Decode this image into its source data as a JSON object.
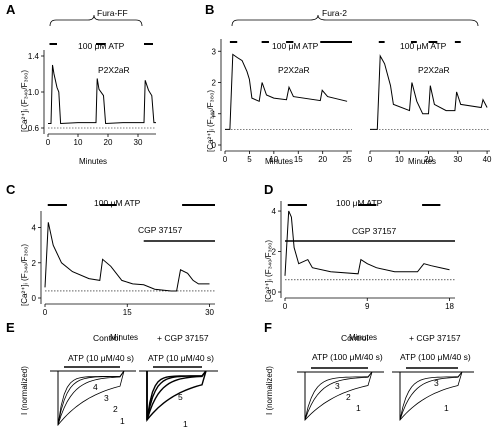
{
  "chart_data": [
    {
      "panel": "A",
      "type": "line",
      "bracket_label": "Fura-FF",
      "xlabel": "Minutes",
      "ylabel": "[Ca²⁺]ᵢ (F₃₄₀/F₃₈₀)",
      "x_ticks": [
        "0",
        "10",
        "20",
        "30"
      ],
      "y_ticks": [
        "0.6",
        "1.0",
        "1.4"
      ],
      "xlim": [
        0,
        36
      ],
      "ylim": [
        0.6,
        1.4
      ],
      "annotations": [
        "100 μM ATP",
        "P2X2aR"
      ],
      "stim_bars": [
        [
          0.5,
          3
        ],
        [
          16,
          19
        ],
        [
          32,
          35
        ]
      ],
      "baseline": 0.6,
      "trace": [
        [
          0,
          0.65
        ],
        [
          1,
          0.65
        ],
        [
          1.5,
          1.3
        ],
        [
          2,
          1.2
        ],
        [
          3,
          1.05
        ],
        [
          3.6,
          1.0
        ],
        [
          4.2,
          0.65
        ],
        [
          10,
          0.66
        ],
        [
          16,
          0.66
        ],
        [
          16.4,
          1.15
        ],
        [
          17,
          1.03
        ],
        [
          18.5,
          0.96
        ],
        [
          19.2,
          0.65
        ],
        [
          25,
          0.66
        ],
        [
          32,
          0.66
        ],
        [
          32.4,
          1.13
        ],
        [
          33.5,
          1.02
        ],
        [
          34.6,
          0.96
        ],
        [
          35.3,
          0.66
        ],
        [
          36,
          0.66
        ]
      ]
    },
    {
      "panel": "B",
      "type": "line",
      "bracket_label": "Fura-2",
      "xlabel": "Minutes",
      "ylabel": "[Ca²⁺]ᵢ (F₃₄₀/F₃₈₀)",
      "x_ticks": [
        "0",
        "5",
        "10",
        "15",
        "20",
        "25"
      ],
      "y_ticks": [
        "0",
        "1",
        "2",
        "3"
      ],
      "xlim": [
        0,
        26
      ],
      "ylim": [
        0,
        3.2
      ],
      "annotations": [
        "100 μM ATP",
        "P2X2aR"
      ],
      "stim_bars": [
        [
          1,
          2.5
        ],
        [
          7.5,
          9
        ],
        [
          12.5,
          14
        ],
        [
          19.5,
          26
        ]
      ],
      "baseline": 0.5,
      "trace": [
        [
          0,
          0.5
        ],
        [
          1,
          0.5
        ],
        [
          1.6,
          2.9
        ],
        [
          2.5,
          2.8
        ],
        [
          3.5,
          2.7
        ],
        [
          4.5,
          2.35
        ],
        [
          5,
          2.1
        ],
        [
          5.5,
          1.5
        ],
        [
          7,
          1.4
        ],
        [
          7.6,
          2.0
        ],
        [
          8.5,
          1.6
        ],
        [
          10,
          1.5
        ],
        [
          12.6,
          1.45
        ],
        [
          13.1,
          1.85
        ],
        [
          14,
          1.55
        ],
        [
          19.5,
          1.42
        ],
        [
          19.9,
          1.75
        ],
        [
          21,
          1.55
        ],
        [
          25,
          1.4
        ]
      ]
    },
    {
      "panel": "B2",
      "type": "line",
      "xlabel": "Minutes",
      "x_ticks": [
        "0",
        "10",
        "20",
        "30",
        "40"
      ],
      "xlim": [
        0,
        41
      ],
      "ylim": [
        0,
        3.2
      ],
      "annotations": [
        "100 μM ATP",
        "P2X2aR"
      ],
      "stim_bars": [
        [
          3,
          5
        ],
        [
          14,
          16
        ],
        [
          20,
          23
        ],
        [
          29,
          31
        ]
      ],
      "baseline": 0.5,
      "trace": [
        [
          0,
          0.5
        ],
        [
          2.5,
          0.5
        ],
        [
          3.5,
          2.85
        ],
        [
          5,
          2.6
        ],
        [
          7,
          1.9
        ],
        [
          8,
          1.3
        ],
        [
          13.5,
          1.1
        ],
        [
          14.3,
          2.0
        ],
        [
          16,
          1.4
        ],
        [
          18,
          1.0
        ],
        [
          20,
          1.0
        ],
        [
          20.6,
          1.9
        ],
        [
          22,
          1.3
        ],
        [
          26,
          1.1
        ],
        [
          29,
          1.1
        ],
        [
          29.6,
          1.7
        ],
        [
          31,
          1.3
        ],
        [
          38,
          1.2
        ],
        [
          38.6,
          1.45
        ],
        [
          40,
          1.2
        ]
      ]
    },
    {
      "panel": "C",
      "type": "line",
      "xlabel": "Minutes",
      "ylabel": "[Ca²⁺]ᵢ (F₃₄₀/F₃₈₀)",
      "x_ticks": [
        "0",
        "15",
        "30"
      ],
      "y_ticks": [
        "0",
        "2",
        "4"
      ],
      "xlim": [
        0,
        31
      ],
      "ylim": [
        0,
        4.6
      ],
      "annotations": [
        "100 μM ATP",
        "CGP 37157"
      ],
      "stim_bars": [
        [
          0.5,
          4
        ],
        [
          10,
          13
        ],
        [
          25,
          31
        ]
      ],
      "drug_bar": [
        18,
        31
      ],
      "baseline": 0.4,
      "trace": [
        [
          0,
          0.6
        ],
        [
          0.6,
          4.3
        ],
        [
          1.5,
          3.0
        ],
        [
          3,
          2.0
        ],
        [
          5,
          1.5
        ],
        [
          8,
          1.1
        ],
        [
          10,
          1.0
        ],
        [
          10.5,
          2.2
        ],
        [
          12,
          1.8
        ],
        [
          14,
          1.0
        ],
        [
          16,
          0.8
        ],
        [
          18,
          0.75
        ],
        [
          20,
          0.5
        ],
        [
          23,
          0.4
        ],
        [
          24,
          0.4
        ],
        [
          24.7,
          1.6
        ],
        [
          26,
          1.4
        ],
        [
          27,
          1.0
        ],
        [
          28,
          0.8
        ],
        [
          30,
          0.8
        ]
      ]
    },
    {
      "panel": "D",
      "type": "line",
      "xlabel": "Minutes",
      "ylabel": "[Ca²⁺]ᵢ (F₃₄₀/F₃₈₀)",
      "x_ticks": [
        "0",
        "9",
        "18"
      ],
      "y_ticks": [
        "0",
        "2",
        "4"
      ],
      "xlim": [
        0,
        18.6
      ],
      "ylim": [
        0,
        4.2
      ],
      "annotations": [
        "100 μM ATP",
        "CGP 37157"
      ],
      "stim_bars": [
        [
          0.3,
          2.4
        ],
        [
          8,
          10
        ],
        [
          15,
          17
        ]
      ],
      "drug_bar": [
        0,
        18.6
      ],
      "baseline": 0.6,
      "trace": [
        [
          0,
          0.8
        ],
        [
          0.4,
          4.0
        ],
        [
          0.7,
          3.7
        ],
        [
          1,
          2.2
        ],
        [
          1.5,
          1.4
        ],
        [
          2.5,
          1.6
        ],
        [
          3,
          1.2
        ],
        [
          5,
          1.0
        ],
        [
          8,
          0.9
        ],
        [
          8.3,
          1.6
        ],
        [
          9,
          1.4
        ],
        [
          10,
          1.2
        ],
        [
          12,
          1.0
        ],
        [
          14.5,
          1.0
        ],
        [
          15.2,
          1.4
        ],
        [
          16,
          1.3
        ],
        [
          17,
          1.2
        ],
        [
          18,
          1.1
        ]
      ]
    },
    {
      "panel": "E",
      "type": "line",
      "ylabel": "I (normalized)",
      "groups": [
        {
          "title": "Control",
          "stim": "ATP (10 μM/40 s)",
          "curve_labels": [
            "4",
            "3",
            "2",
            "1"
          ]
        },
        {
          "title": "+ CGP 37157",
          "stim": "ATP (10 μM/40 s)",
          "curve_labels": [
            "5",
            "1"
          ]
        }
      ]
    },
    {
      "panel": "F",
      "type": "line",
      "ylabel": "I (normalized)",
      "groups": [
        {
          "title": "Control",
          "stim": "ATP (100 μM/40 s)",
          "curve_labels": [
            "3",
            "2",
            "1"
          ]
        },
        {
          "title": "+ CGP 37157",
          "stim": "ATP (100 μM/40 s)",
          "curve_labels": [
            "3",
            "1"
          ]
        }
      ]
    }
  ],
  "panel_labels": [
    "A",
    "B",
    "C",
    "D",
    "E",
    "F"
  ]
}
